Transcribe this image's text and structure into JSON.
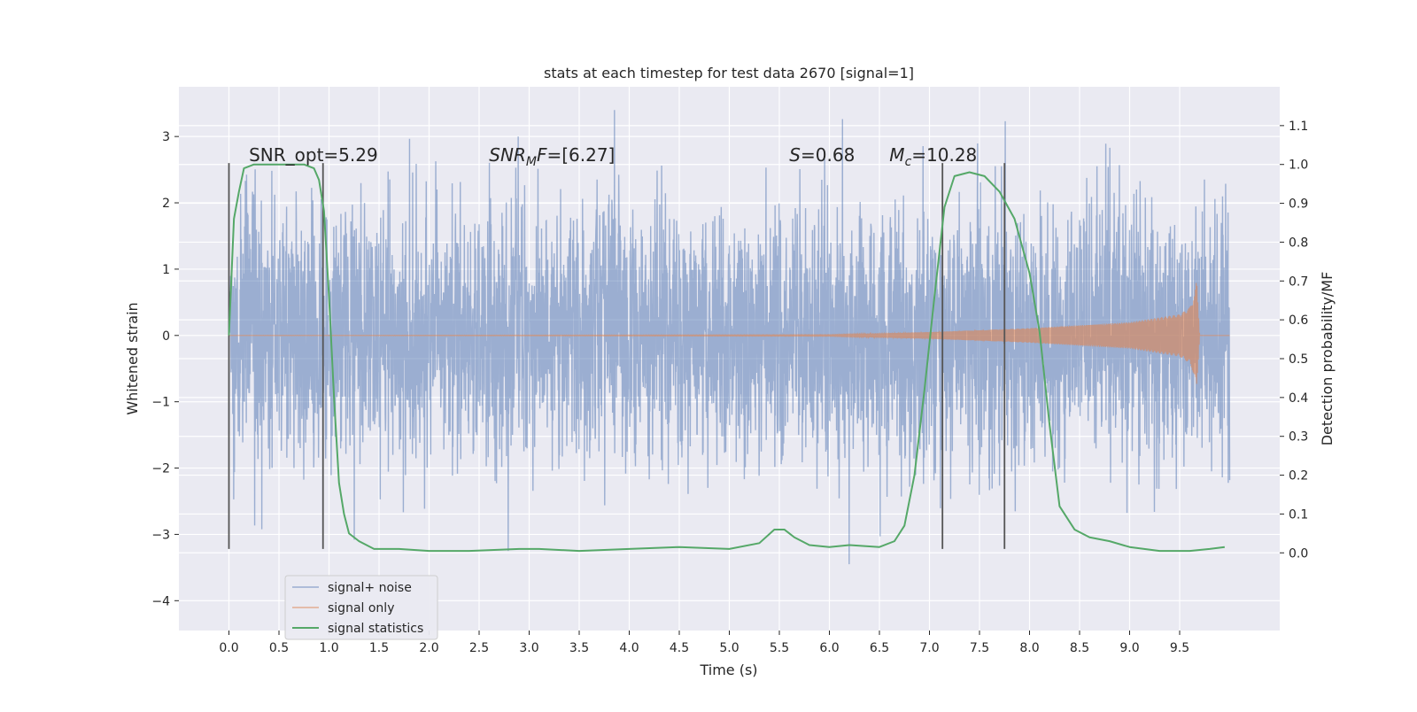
{
  "chart_data": {
    "type": "line",
    "title": "stats at each timestep for test data 2670 [signal=1]",
    "xlabel": "Time (s)",
    "ylabel": "Whitened strain",
    "y2label": "Detection probability/MF",
    "xlim": [
      -0.5,
      10.5
    ],
    "ylim": [
      -4.45,
      3.75
    ],
    "y2lim": [
      -0.2,
      1.2
    ],
    "xticks": [
      0.0,
      0.5,
      1.0,
      1.5,
      2.0,
      2.5,
      3.0,
      3.5,
      4.0,
      4.5,
      5.0,
      5.5,
      6.0,
      6.5,
      7.0,
      7.5,
      8.0,
      8.5,
      9.0,
      9.5
    ],
    "xtick_labels": [
      "0.0",
      "0.5",
      "1.0",
      "1.5",
      "2.0",
      "2.5",
      "3.0",
      "3.5",
      "4.0",
      "4.5",
      "5.0",
      "5.5",
      "6.0",
      "6.5",
      "7.0",
      "7.5",
      "8.0",
      "8.5",
      "9.0",
      "9.5"
    ],
    "yticks": [
      -4,
      -3,
      -2,
      -1,
      0,
      1,
      2,
      3
    ],
    "ytick_labels": [
      "−4",
      "−3",
      "−2",
      "−1",
      "0",
      "1",
      "2",
      "3"
    ],
    "y2ticks": [
      0.0,
      0.1,
      0.2,
      0.3,
      0.4,
      0.5,
      0.6,
      0.7,
      0.8,
      0.9,
      1.0,
      1.1
    ],
    "y2tick_labels": [
      "0.0",
      "0.1",
      "0.2",
      "0.3",
      "0.4",
      "0.5",
      "0.6",
      "0.7",
      "0.8",
      "0.9",
      "1.0",
      "1.1"
    ],
    "grid": true,
    "legend_position": "lower-left",
    "annotations": [
      {
        "x": 0.2,
        "y": 2.63,
        "parts": [
          {
            "text": "SNR_opt=5.29",
            "italic": false
          }
        ]
      },
      {
        "x": 2.6,
        "y": 2.63,
        "parts": [
          {
            "text": "SNR",
            "italic": true
          },
          {
            "text": "M",
            "italic": true,
            "sub": true
          },
          {
            "text": "F",
            "italic": true
          },
          {
            "text": "=[6.27]",
            "italic": false
          }
        ]
      },
      {
        "x": 5.6,
        "y": 2.63,
        "parts": [
          {
            "text": "S",
            "italic": true
          },
          {
            "text": "=0.68",
            "italic": false
          }
        ]
      },
      {
        "x": 6.6,
        "y": 2.63,
        "parts": [
          {
            "text": "M",
            "italic": true
          },
          {
            "text": "c",
            "italic": true,
            "sub": true
          },
          {
            "text": "=10.28",
            "italic": false
          }
        ]
      }
    ],
    "vlines": [
      {
        "x": 0.0,
        "ymin": -3.22,
        "ymax": 2.6
      },
      {
        "x": 0.94,
        "ymin": -3.22,
        "ymax": 2.6
      },
      {
        "x": 7.13,
        "ymin": -3.22,
        "ymax": 2.6
      },
      {
        "x": 7.75,
        "ymin": -3.22,
        "ymax": 2.6
      }
    ],
    "series": [
      {
        "name": "signal+ noise",
        "color": "#4c72b0",
        "axis": "left",
        "kind": "noise",
        "x_range": [
          0.0,
          10.0
        ],
        "sigma": 0.95,
        "y_range": [
          -3.45,
          3.4
        ]
      },
      {
        "name": "signal only",
        "color": "#dd8452",
        "axis": "left",
        "kind": "chirp",
        "x_range": [
          0.0,
          10.0
        ],
        "envelope": {
          "x": [
            0.0,
            6.0,
            7.0,
            8.0,
            9.0,
            9.5,
            9.6,
            9.65,
            9.67,
            9.7,
            10.0
          ],
          "y": [
            0.0,
            0.01,
            0.05,
            0.11,
            0.2,
            0.32,
            0.42,
            0.62,
            0.85,
            0.0,
            0.0
          ]
        }
      },
      {
        "name": "signal statistics",
        "color": "#55a868",
        "axis": "right",
        "x": [
          0.0,
          0.05,
          0.1,
          0.15,
          0.25,
          0.4,
          0.6,
          0.75,
          0.85,
          0.9,
          0.95,
          1.0,
          1.05,
          1.1,
          1.15,
          1.2,
          1.3,
          1.45,
          1.7,
          2.0,
          2.4,
          2.9,
          3.1,
          3.5,
          4.0,
          4.5,
          5.0,
          5.3,
          5.45,
          5.55,
          5.65,
          5.8,
          6.0,
          6.2,
          6.5,
          6.65,
          6.75,
          6.85,
          6.95,
          7.05,
          7.15,
          7.25,
          7.4,
          7.55,
          7.7,
          7.85,
          8.0,
          8.1,
          8.2,
          8.3,
          8.45,
          8.6,
          8.8,
          9.0,
          9.3,
          9.6,
          9.8,
          9.95
        ],
        "y": [
          0.56,
          0.86,
          0.93,
          0.99,
          1.0,
          1.0,
          1.0,
          1.0,
          0.99,
          0.96,
          0.88,
          0.66,
          0.4,
          0.18,
          0.1,
          0.05,
          0.03,
          0.01,
          0.01,
          0.005,
          0.005,
          0.01,
          0.01,
          0.005,
          0.01,
          0.015,
          0.01,
          0.025,
          0.06,
          0.06,
          0.04,
          0.02,
          0.015,
          0.02,
          0.015,
          0.03,
          0.07,
          0.2,
          0.42,
          0.66,
          0.89,
          0.97,
          0.98,
          0.97,
          0.93,
          0.86,
          0.72,
          0.57,
          0.33,
          0.12,
          0.06,
          0.04,
          0.03,
          0.015,
          0.005,
          0.005,
          0.01,
          0.015
        ]
      }
    ]
  }
}
